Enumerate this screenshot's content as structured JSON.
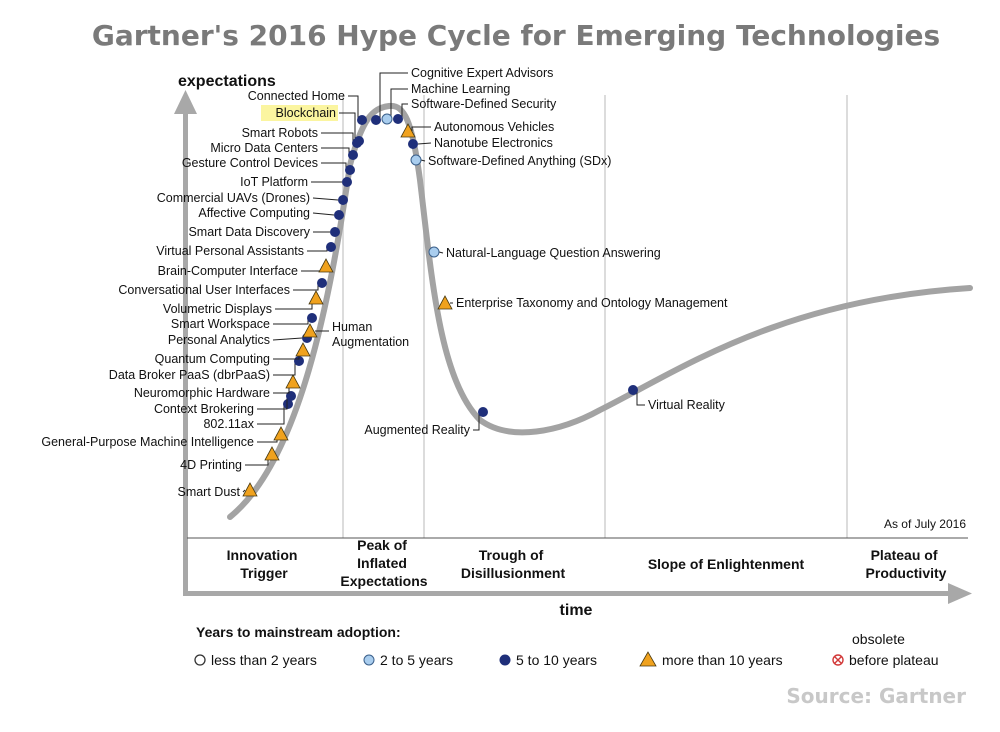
{
  "title": "Gartner's 2016 Hype Cycle for Emerging Technologies",
  "source": "Source: Gartner",
  "y_axis_label": "expectations",
  "x_axis_label": "time",
  "as_of": "As of July 2016",
  "phases": [
    [
      "Innovation",
      "Trigger"
    ],
    [
      "Peak of",
      "Inflated",
      "Expectations"
    ],
    [
      "Trough of",
      "Disillusionment"
    ],
    [
      "Slope of Enlightenment"
    ],
    [
      "Plateau of",
      "Productivity"
    ]
  ],
  "legend": {
    "title": "Years to mainstream adoption:",
    "items": [
      {
        "label": "less than 2 years",
        "marker": "open-circle"
      },
      {
        "label": "2 to 5 years",
        "marker": "light-circle"
      },
      {
        "label": "5 to 10 years",
        "marker": "dark-circle"
      },
      {
        "label": "more than 10 years",
        "marker": "triangle"
      },
      {
        "label": "before plateau",
        "marker": "cross-circle",
        "caption": "obsolete"
      }
    ]
  },
  "colors": {
    "curve": "#a3a3a3",
    "dark_circle": "#1f2f7a",
    "light_circle": "#a9cdee",
    "triangle": "#f0a21e",
    "highlight": "#fbf5a0",
    "obsolete": "#d23a3a"
  },
  "chart_data": {
    "type": "hype-cycle",
    "technologies": [
      {
        "name": "Smart Dust",
        "marker": "triangle",
        "phase": "Innovation Trigger"
      },
      {
        "name": "4D Printing",
        "marker": "triangle",
        "phase": "Innovation Trigger"
      },
      {
        "name": "General-Purpose Machine Intelligence",
        "marker": "triangle",
        "phase": "Innovation Trigger"
      },
      {
        "name": "802.11ax",
        "marker": "dark-circle",
        "phase": "Innovation Trigger"
      },
      {
        "name": "Context Brokering",
        "marker": "dark-circle",
        "phase": "Innovation Trigger"
      },
      {
        "name": "Neuromorphic Hardware",
        "marker": "triangle",
        "phase": "Innovation Trigger"
      },
      {
        "name": "Data Broker PaaS (dbrPaaS)",
        "marker": "dark-circle",
        "phase": "Innovation Trigger"
      },
      {
        "name": "Quantum Computing",
        "marker": "triangle",
        "phase": "Innovation Trigger"
      },
      {
        "name": "Personal Analytics",
        "marker": "dark-circle",
        "phase": "Innovation Trigger"
      },
      {
        "name": "Human Augmentation",
        "marker": "triangle",
        "phase": "Innovation Trigger"
      },
      {
        "name": "Smart Workspace",
        "marker": "dark-circle",
        "phase": "Innovation Trigger"
      },
      {
        "name": "Volumetric Displays",
        "marker": "triangle",
        "phase": "Innovation Trigger"
      },
      {
        "name": "Conversational User Interfaces",
        "marker": "dark-circle",
        "phase": "Innovation Trigger"
      },
      {
        "name": "Brain-Computer Interface",
        "marker": "triangle",
        "phase": "Innovation Trigger"
      },
      {
        "name": "Virtual Personal Assistants",
        "marker": "dark-circle",
        "phase": "Innovation Trigger"
      },
      {
        "name": "Smart Data Discovery",
        "marker": "dark-circle",
        "phase": "Innovation Trigger"
      },
      {
        "name": "Affective Computing",
        "marker": "dark-circle",
        "phase": "Innovation Trigger"
      },
      {
        "name": "Commercial UAVs (Drones)",
        "marker": "dark-circle",
        "phase": "Innovation Trigger"
      },
      {
        "name": "IoT Platform",
        "marker": "dark-circle",
        "phase": "Innovation Trigger"
      },
      {
        "name": "Gesture Control Devices",
        "marker": "dark-circle",
        "phase": "Innovation Trigger"
      },
      {
        "name": "Micro Data Centers",
        "marker": "dark-circle",
        "phase": "Innovation Trigger"
      },
      {
        "name": "Smart Robots",
        "marker": "dark-circle",
        "phase": "Innovation Trigger"
      },
      {
        "name": "Blockchain",
        "marker": "dark-circle",
        "phase": "Innovation Trigger",
        "highlighted": true
      },
      {
        "name": "Connected Home",
        "marker": "dark-circle",
        "phase": "Innovation Trigger"
      },
      {
        "name": "Cognitive Expert Advisors",
        "marker": "dark-circle",
        "phase": "Peak of Inflated Expectations"
      },
      {
        "name": "Machine Learning",
        "marker": "light-circle",
        "phase": "Peak of Inflated Expectations"
      },
      {
        "name": "Software-Defined Security",
        "marker": "dark-circle",
        "phase": "Peak of Inflated Expectations"
      },
      {
        "name": "Autonomous Vehicles",
        "marker": "triangle",
        "phase": "Peak of Inflated Expectations"
      },
      {
        "name": "Nanotube Electronics",
        "marker": "dark-circle",
        "phase": "Peak of Inflated Expectations"
      },
      {
        "name": "Software-Defined Anything (SDx)",
        "marker": "light-circle",
        "phase": "Peak of Inflated Expectations"
      },
      {
        "name": "Natural-Language Question Answering",
        "marker": "light-circle",
        "phase": "Trough of Disillusionment"
      },
      {
        "name": "Enterprise Taxonomy and Ontology Management",
        "marker": "triangle",
        "phase": "Trough of Disillusionment"
      },
      {
        "name": "Augmented Reality",
        "marker": "dark-circle",
        "phase": "Trough of Disillusionment"
      },
      {
        "name": "Virtual Reality",
        "marker": "dark-circle",
        "phase": "Slope of Enlightenment"
      }
    ]
  }
}
